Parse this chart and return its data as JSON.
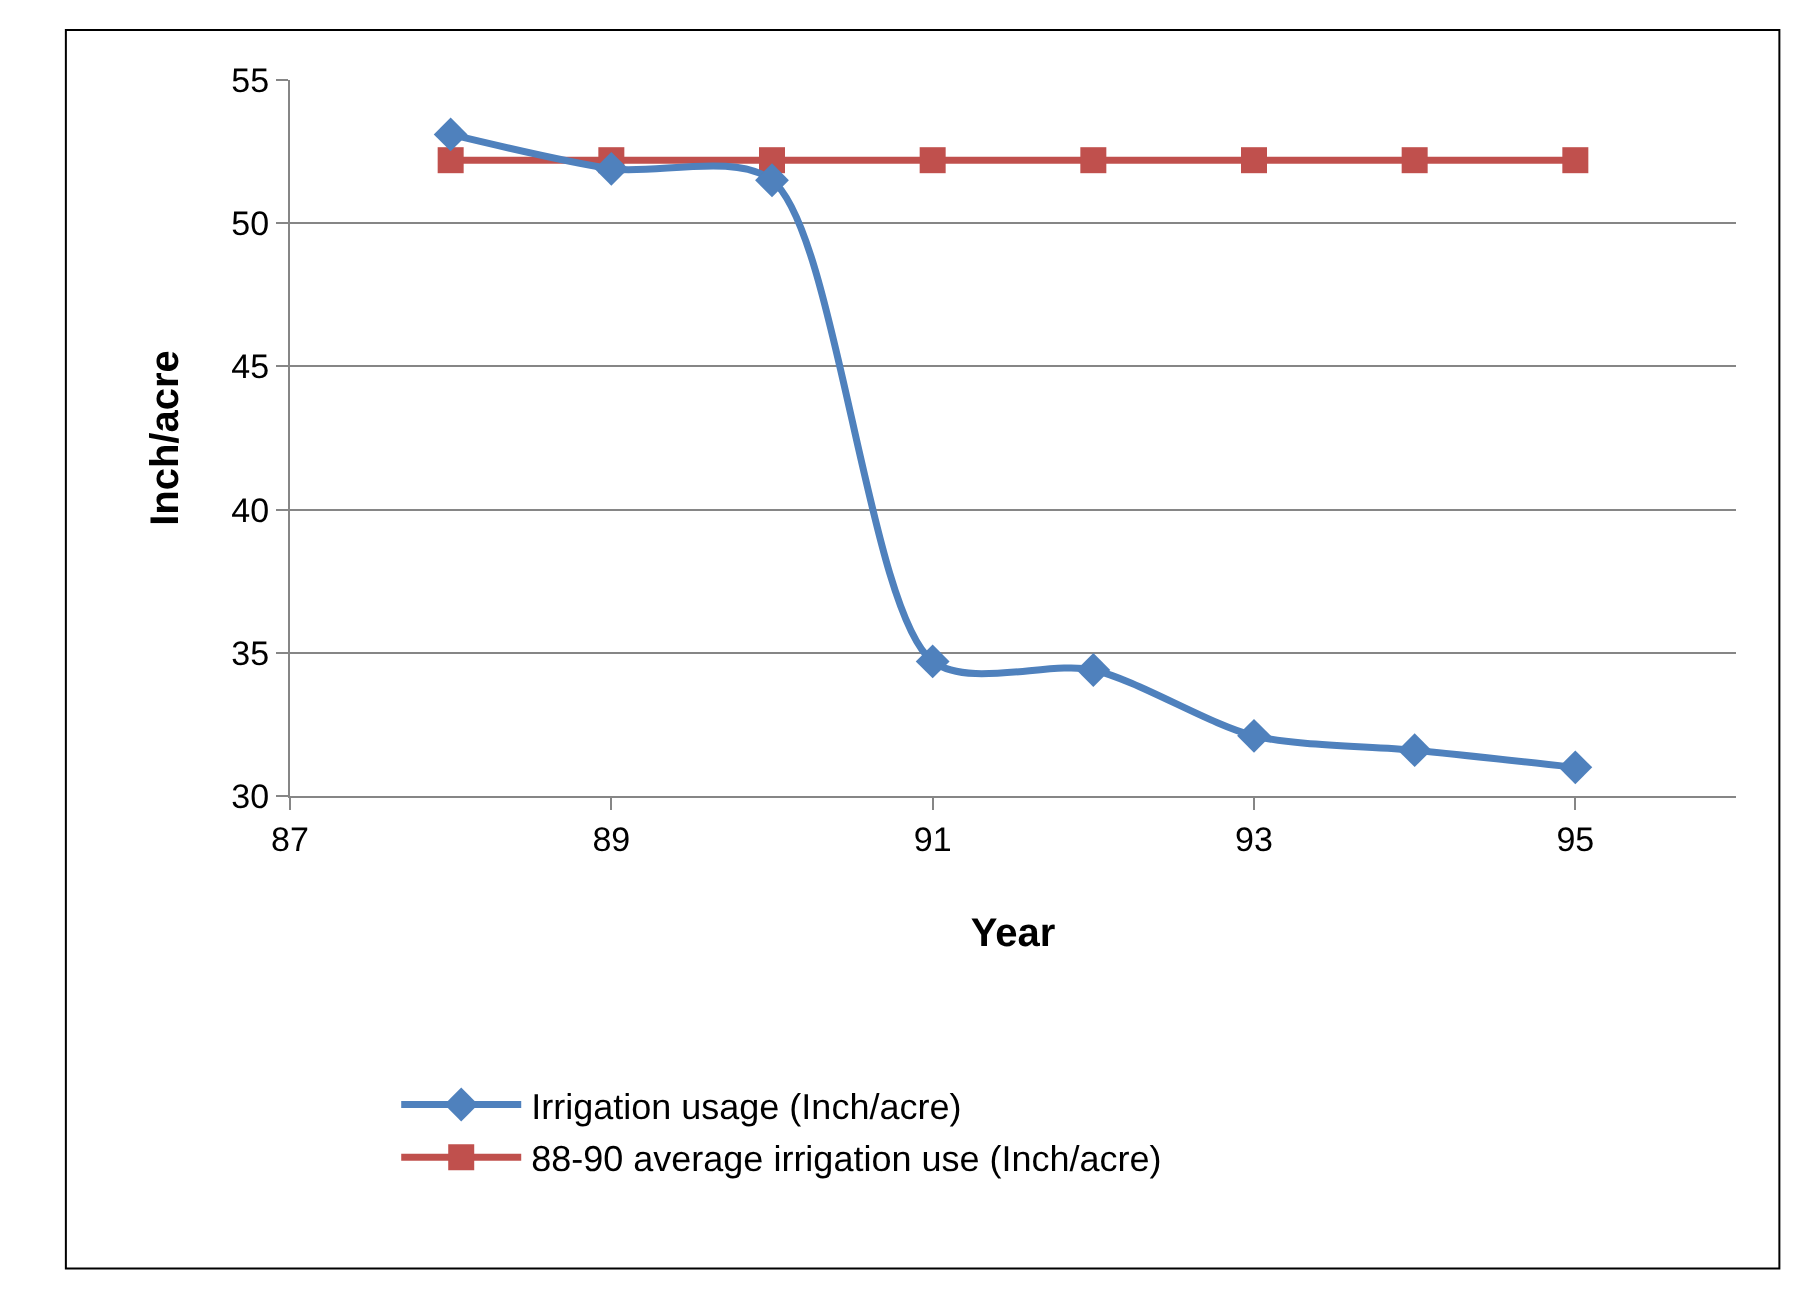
{
  "chart_data": {
    "type": "line",
    "xlabel": "Year",
    "ylabel": "Inch/acre",
    "x": [
      88,
      89,
      90,
      91,
      92,
      93,
      94,
      95
    ],
    "series": [
      {
        "name": "Irrigation usage (Inch/acre)",
        "color": "#4f81bd",
        "marker": "diamond",
        "values": [
          53.1,
          51.9,
          51.5,
          34.7,
          34.4,
          32.1,
          31.6,
          31.0
        ]
      },
      {
        "name": "88-90 average irrigation use (Inch/acre)",
        "color": "#c0504d",
        "marker": "square",
        "values": [
          52.2,
          52.2,
          52.2,
          52.2,
          52.2,
          52.2,
          52.2,
          52.2
        ]
      }
    ],
    "xlim": [
      87,
      96
    ],
    "xticks": [
      87,
      89,
      91,
      93,
      95
    ],
    "ylim": [
      30,
      55
    ],
    "yticks": [
      30,
      35,
      40,
      45,
      50,
      55
    ],
    "grid": "y",
    "legend": "bottom",
    "line_style": "solid"
  }
}
